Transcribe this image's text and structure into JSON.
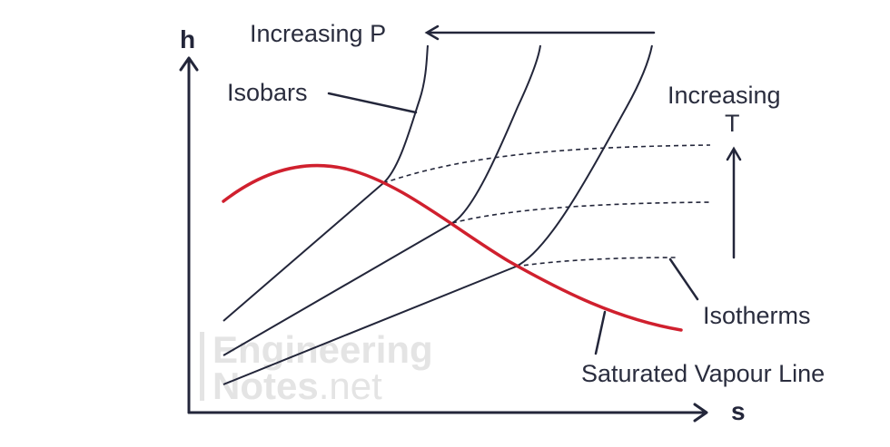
{
  "diagram": {
    "axes": {
      "y_label": "h",
      "x_label": "s"
    },
    "labels": {
      "increasing_p": "Increasing P",
      "isobars": "Isobars",
      "increasing_t_line1": "Increasing",
      "increasing_t_line2": "T",
      "isotherms": "Isotherms",
      "saturated_vapour_line": "Saturated Vapour Line"
    },
    "watermark": {
      "line1": "Engineering",
      "line2_bold": "Notes",
      "line2_light": ".net"
    },
    "colors": {
      "ink": "#23263a",
      "saturation_line": "#d0202e",
      "watermark": "#e4e4e4"
    },
    "curve_counts": {
      "isobars": 3,
      "isotherms": 3
    }
  }
}
